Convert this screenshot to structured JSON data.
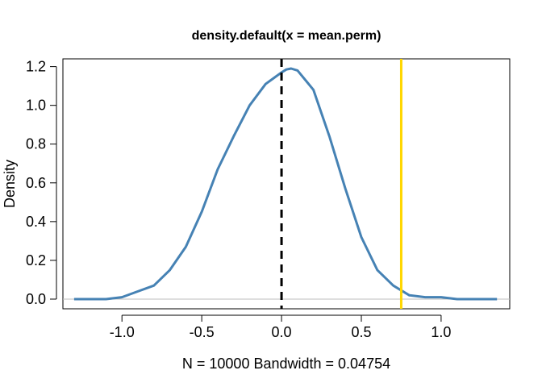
{
  "chart_data": {
    "type": "line",
    "title": "density.default(x = mean.perm)",
    "xlabel": "N = 10000   Bandwidth = 0.04754",
    "ylabel": "Density",
    "xlim": [
      -1.37,
      1.43
    ],
    "ylim": [
      -0.05,
      1.24
    ],
    "x_ticks": [
      "-1.0",
      "-0.5",
      "0.0",
      "0.5",
      "1.0"
    ],
    "x_tick_values": [
      -1.0,
      -0.5,
      0.0,
      0.5,
      1.0
    ],
    "y_ticks": [
      "0.0",
      "0.2",
      "0.4",
      "0.6",
      "0.8",
      "1.0",
      "1.2"
    ],
    "y_tick_values": [
      0.0,
      0.2,
      0.4,
      0.6,
      0.8,
      1.0,
      1.2
    ],
    "grid": false,
    "series": [
      {
        "color": "#4682B4",
        "x": [
          -1.3,
          -1.1,
          -1.0,
          -0.9,
          -0.8,
          -0.7,
          -0.6,
          -0.5,
          -0.4,
          -0.3,
          -0.2,
          -0.1,
          -0.05,
          0.0,
          0.03,
          0.06,
          0.1,
          0.2,
          0.3,
          0.4,
          0.5,
          0.6,
          0.7,
          0.8,
          0.9,
          1.0,
          1.1,
          1.2,
          1.35
        ],
        "y": [
          0.0,
          0.0,
          0.01,
          0.04,
          0.07,
          0.15,
          0.27,
          0.45,
          0.67,
          0.84,
          1.0,
          1.11,
          1.14,
          1.17,
          1.185,
          1.19,
          1.18,
          1.08,
          0.84,
          0.57,
          0.32,
          0.15,
          0.07,
          0.02,
          0.01,
          0.01,
          0.0,
          0.0,
          0.0
        ]
      }
    ],
    "reference_lines": [
      {
        "orientation": "horizontal",
        "value": 0,
        "color": "#BEBEBE",
        "style": "solid"
      },
      {
        "orientation": "vertical",
        "value": 0.0,
        "color": "#000000",
        "style": "dashed"
      },
      {
        "orientation": "vertical",
        "value": 0.75,
        "color": "#FFD700",
        "style": "solid"
      }
    ]
  }
}
